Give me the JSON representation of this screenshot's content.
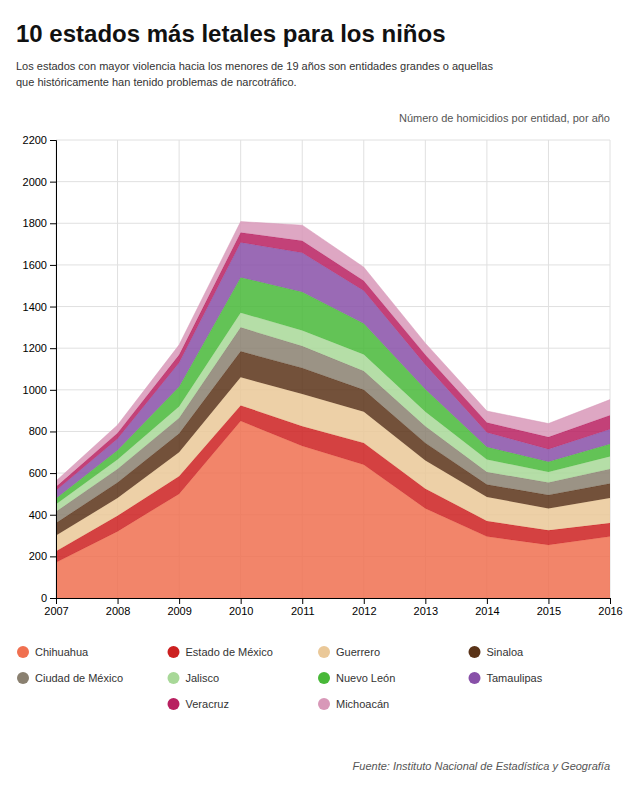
{
  "chart_data": {
    "type": "area",
    "stacked": true,
    "title": "10 estados más letales para los niños",
    "subtitle": [
      "Los estados con mayor violencia hacia los menores de 19 años son entidades grandes o aquellas",
      "que históricamente han tenido problemas de narcotráfico."
    ],
    "ylabel": "Número de homicidios por entidad, por año",
    "annotations": [
      "Fuente: Instituto Nacional de Estadística y Geografía"
    ],
    "x": [
      2007,
      2008,
      2009,
      2010,
      2011,
      2012,
      2013,
      2014,
      2015,
      2016
    ],
    "series": [
      {
        "name": "Chihuahua",
        "color": "#F07050",
        "values": [
          170,
          320,
          500,
          850,
          730,
          640,
          430,
          295,
          255,
          295
        ]
      },
      {
        "name": "Estado de México",
        "color": "#CC2020",
        "values": [
          55,
          75,
          85,
          75,
          95,
          105,
          95,
          75,
          70,
          65
        ]
      },
      {
        "name": "Guerrero",
        "color": "#EAC898",
        "values": [
          75,
          85,
          115,
          135,
          155,
          150,
          135,
          115,
          105,
          120
        ]
      },
      {
        "name": "Sinaloa",
        "color": "#5A3318",
        "values": [
          60,
          75,
          90,
          125,
          125,
          105,
          85,
          60,
          65,
          70
        ]
      },
      {
        "name": "Ciudad de México",
        "color": "#8A8070",
        "values": [
          55,
          65,
          75,
          115,
          105,
          90,
          80,
          60,
          60,
          70
        ]
      },
      {
        "name": "Jalisco",
        "color": "#A8D898",
        "values": [
          35,
          45,
          55,
          70,
          75,
          80,
          70,
          60,
          50,
          60
        ]
      },
      {
        "name": "Nuevo León",
        "color": "#48B838",
        "values": [
          28,
          45,
          95,
          170,
          185,
          148,
          108,
          60,
          50,
          60
        ]
      },
      {
        "name": "Tamaulipas",
        "color": "#8850A8",
        "values": [
          38,
          55,
          115,
          168,
          188,
          158,
          118,
          70,
          60,
          70
        ]
      },
      {
        "name": "Veracruz",
        "color": "#B82060",
        "values": [
          18,
          28,
          38,
          48,
          58,
          48,
          48,
          48,
          58,
          68
        ]
      },
      {
        "name": "Michoacán",
        "color": "#D898B8",
        "values": [
          28,
          38,
          48,
          52,
          75,
          65,
          55,
          55,
          65,
          75
        ]
      }
    ],
    "xlim": [
      2007,
      2016
    ],
    "xticks": [
      2007,
      2008,
      2009,
      2010,
      2011,
      2012,
      2013,
      2014,
      2015,
      2016
    ],
    "ylim": [
      0,
      2200
    ],
    "yticks": [
      0,
      200,
      400,
      600,
      800,
      1000,
      1200,
      1400,
      1600,
      1800,
      2000,
      2200
    ],
    "grid": true,
    "legend": "bottom"
  }
}
